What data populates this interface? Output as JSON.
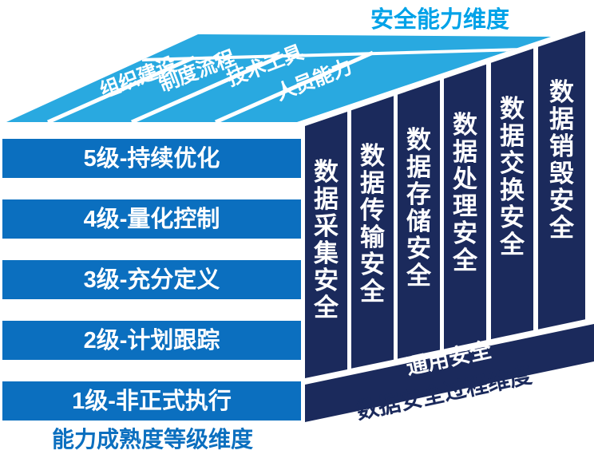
{
  "title": "安全能力维度",
  "capability_axis": {
    "stripes": [
      "组织建设",
      "制度流程",
      "技术工具",
      "人员能力"
    ]
  },
  "maturity_axis": {
    "levels": [
      "5级-持续优化",
      "4级-量化控制",
      "3级-充分定义",
      "2级-计划跟踪",
      "1级-非正式执行"
    ],
    "label": "能力成熟度等级维度"
  },
  "process_axis": {
    "columns": [
      "数据采集安全",
      "数据传输安全",
      "数据存储安全",
      "数据处理安全",
      "数据交换安全",
      "数据销毁安全"
    ],
    "general_security": "通用安全",
    "label": "数据安全过程维度"
  },
  "colors": {
    "roof_cyan": "#29A9E0",
    "title_cyan": "#00A2E8",
    "bar_blue": "#0B6FBF",
    "navy": "#1B2A5C",
    "white": "#ffffff"
  }
}
